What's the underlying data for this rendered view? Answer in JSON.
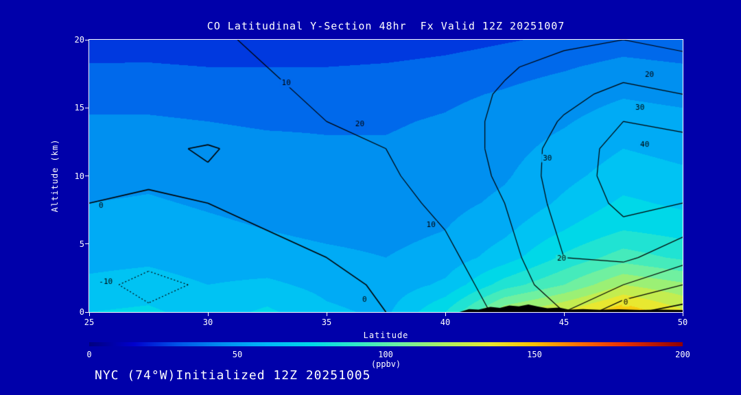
{
  "title": "CO Latitudinal Y-Section 48hr  Fx Valid 12Z 20251007",
  "footer": "NYC (74°W)Initialized 12Z 20251005",
  "colors": {
    "background": "#0000AA",
    "text": "#FFFFFF",
    "frame": "#FFFFFF",
    "contour_line": "#000000",
    "terrain": "#000000"
  },
  "chart_data": {
    "type": "heatmap",
    "subtype": "filled-contour-latitude-height-cross-section",
    "title": "CO Latitudinal Y-Section 48hr  Fx Valid 12Z 20251007",
    "xlabel": "Latitude",
    "ylabel": "Altitude (km)",
    "x_range": [
      25,
      50
    ],
    "y_range": [
      0,
      20
    ],
    "x_tick_labels": [
      "25",
      "30",
      "35",
      "40",
      "45",
      "50"
    ],
    "x_tick_values": [
      25,
      30,
      35,
      40,
      45,
      50
    ],
    "y_tick_labels": [
      "0",
      "5",
      "10",
      "15",
      "20"
    ],
    "y_tick_values": [
      0,
      5,
      10,
      15,
      20
    ],
    "grid_on": false,
    "lats": [
      25,
      27.5,
      30,
      32.5,
      35,
      37.5,
      40,
      42.5,
      45,
      47.5,
      50
    ],
    "alts": [
      0,
      2,
      4,
      6,
      8,
      10,
      12,
      14,
      16,
      18,
      20
    ],
    "fill_ppbv": [
      [
        70,
        72,
        65,
        72,
        62,
        58,
        80,
        118,
        132,
        148,
        132
      ],
      [
        62,
        64,
        60,
        62,
        57,
        54,
        62,
        85,
        100,
        120,
        112
      ],
      [
        57,
        58,
        55,
        54,
        52,
        50,
        54,
        65,
        82,
        95,
        88
      ],
      [
        52,
        54,
        52,
        50,
        48,
        47,
        50,
        58,
        70,
        80,
        76
      ],
      [
        50,
        51,
        49,
        47,
        46,
        45,
        47,
        52,
        62,
        72,
        68
      ],
      [
        47,
        48,
        46,
        45,
        44,
        43,
        45,
        49,
        57,
        65,
        62
      ],
      [
        44,
        45,
        43,
        42,
        41,
        41,
        43,
        47,
        53,
        60,
        57
      ],
      [
        41,
        41,
        40,
        39,
        39,
        39,
        41,
        45,
        49,
        55,
        53
      ],
      [
        37,
        37,
        36,
        35,
        35,
        36,
        38,
        41,
        45,
        49,
        47
      ],
      [
        31,
        31,
        30,
        30,
        30,
        31,
        33,
        36,
        39,
        43,
        41
      ],
      [
        24,
        25,
        24,
        23,
        23,
        24,
        26,
        29,
        32,
        35,
        33
      ]
    ],
    "contour_field": [
      [
        -5,
        -9,
        -7,
        -4,
        -2,
        0,
        4,
        12,
        20,
        2,
        -4
      ],
      [
        -8,
        -12,
        -9,
        -5,
        -2,
        1,
        6,
        14,
        26,
        20,
        10
      ],
      [
        -5,
        -8,
        -6,
        -3,
        0,
        3,
        8,
        16,
        30,
        32,
        24
      ],
      [
        -2,
        -4,
        -3,
        0,
        2,
        5,
        10,
        18,
        32,
        38,
        32
      ],
      [
        0,
        -1,
        0,
        2,
        4,
        7,
        12,
        20,
        34,
        42,
        40
      ],
      [
        2,
        1,
        1,
        3,
        6,
        9,
        13,
        22,
        35,
        44,
        43
      ],
      [
        3,
        2,
        -1,
        4,
        7,
        10,
        14,
        23,
        34,
        44,
        43
      ],
      [
        5,
        5,
        6,
        8,
        10,
        12,
        16,
        22,
        31,
        40,
        38
      ],
      [
        6,
        6,
        7,
        9,
        11,
        13,
        16,
        21,
        27,
        33,
        30
      ],
      [
        7,
        7,
        8,
        10,
        12,
        14,
        16,
        19,
        23,
        26,
        24
      ],
      [
        8,
        8,
        9,
        11,
        12,
        14,
        15,
        17,
        18,
        20,
        17
      ]
    ],
    "contour_levels": [
      -10,
      0,
      10,
      20,
      30,
      40
    ],
    "dashed_levels": [
      -10
    ],
    "fill_quantize_step": 10,
    "colormap": [
      [
        0,
        "#000080"
      ],
      [
        15,
        "#0000CD"
      ],
      [
        30,
        "#0055E8"
      ],
      [
        45,
        "#0090F0"
      ],
      [
        60,
        "#00B8F8"
      ],
      [
        75,
        "#00D8E8"
      ],
      [
        90,
        "#30E8C8"
      ],
      [
        105,
        "#70F0A0"
      ],
      [
        120,
        "#B0F060"
      ],
      [
        135,
        "#E8E830"
      ],
      [
        150,
        "#FFC000"
      ],
      [
        165,
        "#FF7000"
      ],
      [
        180,
        "#E83000"
      ],
      [
        200,
        "#900000"
      ]
    ],
    "colorbar": {
      "min": 0,
      "max": 200,
      "tick_labels": [
        "0",
        "50",
        "100",
        "150",
        "200"
      ],
      "tick_values": [
        0,
        50,
        100,
        150,
        200
      ],
      "label": "(ppbv)"
    },
    "contour_labels": [
      {
        "text": "-10",
        "lat": 25.7,
        "alt": 2.2
      },
      {
        "text": "0",
        "lat": 25.5,
        "alt": 7.8
      },
      {
        "text": "10",
        "lat": 33.3,
        "alt": 16.8
      },
      {
        "text": "20",
        "lat": 36.4,
        "alt": 13.8
      },
      {
        "text": "30",
        "lat": 44.3,
        "alt": 11.3
      },
      {
        "text": "10",
        "lat": 39.4,
        "alt": 6.4
      },
      {
        "text": "0",
        "lat": 36.6,
        "alt": 0.9
      },
      {
        "text": "20",
        "lat": 44.9,
        "alt": 3.9
      },
      {
        "text": "0",
        "lat": 47.6,
        "alt": 0.7
      },
      {
        "text": "20",
        "lat": 48.6,
        "alt": 17.4
      },
      {
        "text": "30",
        "lat": 48.2,
        "alt": 15.0
      },
      {
        "text": "40",
        "lat": 48.4,
        "alt": 12.3
      }
    ],
    "terrain_profile": [
      [
        40.6,
        0
      ],
      [
        41.0,
        0.22
      ],
      [
        41.4,
        0.18
      ],
      [
        41.9,
        0.38
      ],
      [
        42.3,
        0.3
      ],
      [
        42.7,
        0.48
      ],
      [
        43.1,
        0.42
      ],
      [
        43.5,
        0.55
      ],
      [
        43.9,
        0.4
      ],
      [
        44.3,
        0.28
      ],
      [
        44.8,
        0.33
      ],
      [
        45.2,
        0.18
      ],
      [
        45.8,
        0.22
      ],
      [
        46.5,
        0.16
      ],
      [
        47.3,
        0.2
      ],
      [
        48.2,
        0.15
      ],
      [
        49.0,
        0.18
      ],
      [
        50,
        0.15
      ]
    ]
  }
}
